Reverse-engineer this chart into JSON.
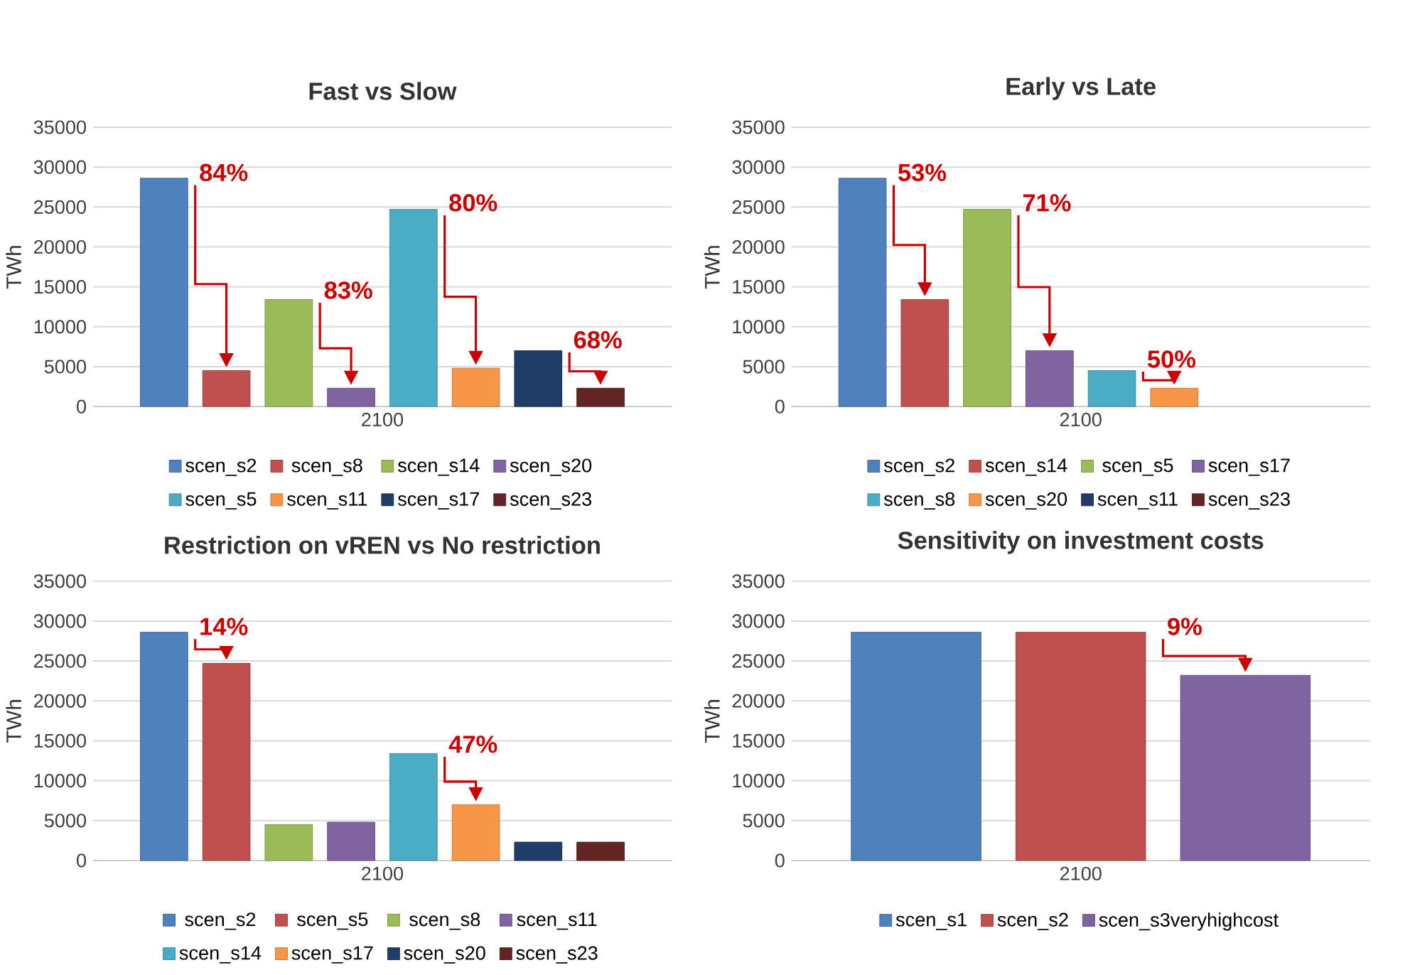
{
  "chart_data": [
    {
      "type": "bar",
      "title": "Fast vs Slow",
      "ylabel": "TWh",
      "categories": [
        "2100"
      ],
      "ylim": [
        0,
        35000
      ],
      "yticks": [
        0,
        5000,
        10000,
        15000,
        20000,
        25000,
        30000,
        35000
      ],
      "grid": "y",
      "legend": "bottom",
      "series": [
        {
          "name": "scen_s2",
          "color": "#4f81bd",
          "values": [
            28600
          ]
        },
        {
          "name": "scen_s8",
          "color": "#c0504d",
          "values": [
            4500
          ]
        },
        {
          "name": "scen_s14",
          "color": "#9bbb59",
          "values": [
            13400
          ]
        },
        {
          "name": "scen_s20",
          "color": "#8064a2",
          "values": [
            2300
          ]
        },
        {
          "name": "scen_s5",
          "color": "#4bacc6",
          "values": [
            24700
          ]
        },
        {
          "name": "scen_s11",
          "color": "#f79646",
          "values": [
            4800
          ]
        },
        {
          "name": "scen_s17",
          "color": "#1f3d66",
          "values": [
            7000
          ]
        },
        {
          "name": "scen_s23",
          "color": "#632523",
          "values": [
            2300
          ]
        }
      ],
      "annotations": [
        "84%",
        "83%",
        "80%",
        "68%"
      ]
    },
    {
      "type": "bar",
      "title": "Early vs Late",
      "ylabel": "TWh",
      "categories": [
        "2100"
      ],
      "ylim": [
        0,
        35000
      ],
      "yticks": [
        0,
        5000,
        10000,
        15000,
        20000,
        25000,
        30000,
        35000
      ],
      "grid": "y",
      "legend": "bottom",
      "series": [
        {
          "name": "scen_s2",
          "color": "#4f81bd",
          "values": [
            28600
          ]
        },
        {
          "name": "scen_s14",
          "color": "#c0504d",
          "values": [
            13400
          ]
        },
        {
          "name": "scen_s5",
          "color": "#9bbb59",
          "values": [
            24700
          ]
        },
        {
          "name": "scen_s17",
          "color": "#8064a2",
          "values": [
            7000
          ]
        },
        {
          "name": "scen_s8",
          "color": "#4bacc6",
          "values": [
            4500
          ]
        },
        {
          "name": "scen_s20",
          "color": "#f79646",
          "values": [
            2300
          ]
        },
        {
          "name": "scen_s11",
          "color": "#1f3d66",
          "values": [
            null
          ]
        },
        {
          "name": "scen_s23",
          "color": "#632523",
          "values": [
            null
          ]
        }
      ],
      "annotations": [
        "53%",
        "71%",
        "50%"
      ]
    },
    {
      "type": "bar",
      "title": "Restriction on vREN vs No restriction",
      "ylabel": "TWh",
      "categories": [
        "2100"
      ],
      "ylim": [
        0,
        35000
      ],
      "yticks": [
        0,
        5000,
        10000,
        15000,
        20000,
        25000,
        30000,
        35000
      ],
      "grid": "y",
      "legend": "bottom",
      "series": [
        {
          "name": "scen_s2",
          "color": "#4f81bd",
          "values": [
            28600
          ]
        },
        {
          "name": "scen_s5",
          "color": "#c0504d",
          "values": [
            24700
          ]
        },
        {
          "name": "scen_s8",
          "color": "#9bbb59",
          "values": [
            4500
          ]
        },
        {
          "name": "scen_s11",
          "color": "#8064a2",
          "values": [
            4800
          ]
        },
        {
          "name": "scen_s14",
          "color": "#4bacc6",
          "values": [
            13400
          ]
        },
        {
          "name": "scen_s17",
          "color": "#f79646",
          "values": [
            7000
          ]
        },
        {
          "name": "scen_s20",
          "color": "#1f3d66",
          "values": [
            2300
          ]
        },
        {
          "name": "scen_s23",
          "color": "#632523",
          "values": [
            2300
          ]
        }
      ],
      "annotations": [
        "14%",
        "47%"
      ]
    },
    {
      "type": "bar",
      "title": "Sensitivity on investment costs",
      "ylabel": "TWh",
      "categories": [
        "2100"
      ],
      "ylim": [
        0,
        35000
      ],
      "yticks": [
        0,
        5000,
        10000,
        15000,
        20000,
        25000,
        30000,
        35000
      ],
      "grid": "y",
      "legend": "bottom",
      "series": [
        {
          "name": "scen_s1",
          "color": "#4f81bd",
          "values": [
            28600
          ]
        },
        {
          "name": "scen_s2",
          "color": "#c0504d",
          "values": [
            28600
          ]
        },
        {
          "name": "scen_s3veryhighcost",
          "color": "#8064a2",
          "values": [
            23200
          ]
        }
      ],
      "annotations": [
        "9%"
      ]
    }
  ]
}
